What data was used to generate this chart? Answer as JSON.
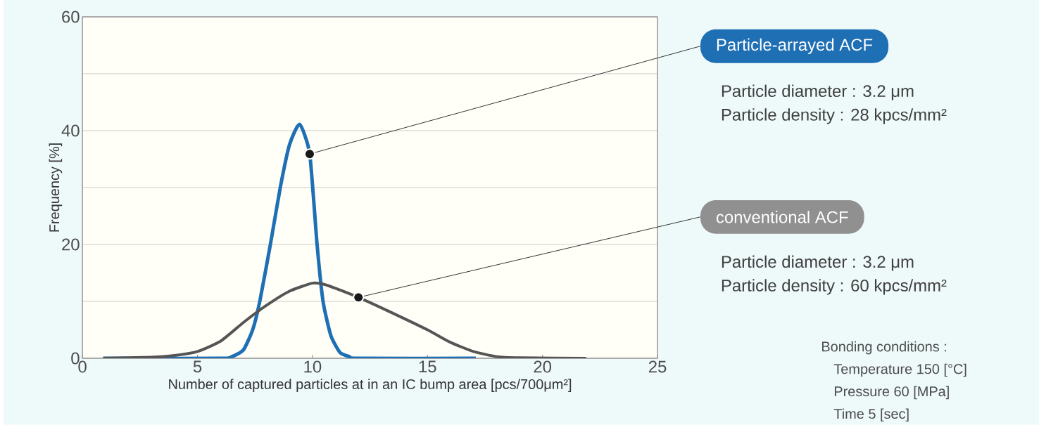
{
  "chart_data": {
    "type": "line",
    "xlabel": "Number of captured particles at in an IC bump area  [pcs/700μm²]",
    "ylabel": "Frequency [%]",
    "xlim": [
      0,
      25
    ],
    "xticks": [
      0,
      5,
      10,
      15,
      20,
      25
    ],
    "ylim": [
      0,
      60
    ],
    "yticks": [
      0,
      {
        "value": 10,
        "label": null
      },
      20,
      {
        "value": 30,
        "label": null
      },
      40,
      {
        "value": 50,
        "label": null
      },
      60
    ],
    "grid": "y",
    "legend": false,
    "series": [
      {
        "color": "#1f6fb4",
        "x": [
          0.9,
          6,
          6.5,
          7,
          7.4,
          7.71,
          8.17,
          8.6,
          9,
          9.44,
          9.88,
          10.2,
          10.46,
          10.8,
          11.2,
          11.6,
          12,
          17.1
        ],
        "values": [
          0,
          0,
          0.3,
          1.5,
          5,
          10,
          20,
          30,
          37.5,
          41.1,
          35.9,
          20,
          10,
          4,
          1,
          0.3,
          0,
          0
        ]
      },
      {
        "color": "#555555",
        "x": [
          0.9,
          3,
          4,
          5,
          6,
          7,
          8,
          9,
          10,
          10.5,
          11,
          12,
          13.35,
          15,
          16,
          17,
          18,
          19,
          21.9
        ],
        "values": [
          0,
          0.2,
          0.5,
          1.2,
          3,
          6.3,
          9.3,
          11.8,
          13.2,
          13,
          12.3,
          10.7,
          8.2,
          5,
          2.8,
          1.2,
          0.3,
          0.1,
          0
        ]
      }
    ],
    "annotations": [
      {
        "text": "Particle-arrayed ACF",
        "x": 9.88,
        "y": 35.9
      },
      "Particle diameter : 3.2 μm",
      "Particle density    : 28 kpcs/mm²",
      {
        "text": "conventional ACF",
        "x": 12,
        "y": 10.7
      },
      "Particle diameter : 3.2 μm",
      "Particle density    : 60 kpcs/mm²",
      "Bonding conditions :",
      "Temperature   150 [°C]",
      "Pressure   60 [MPa]",
      "Time   5 [sec]"
    ]
  }
}
